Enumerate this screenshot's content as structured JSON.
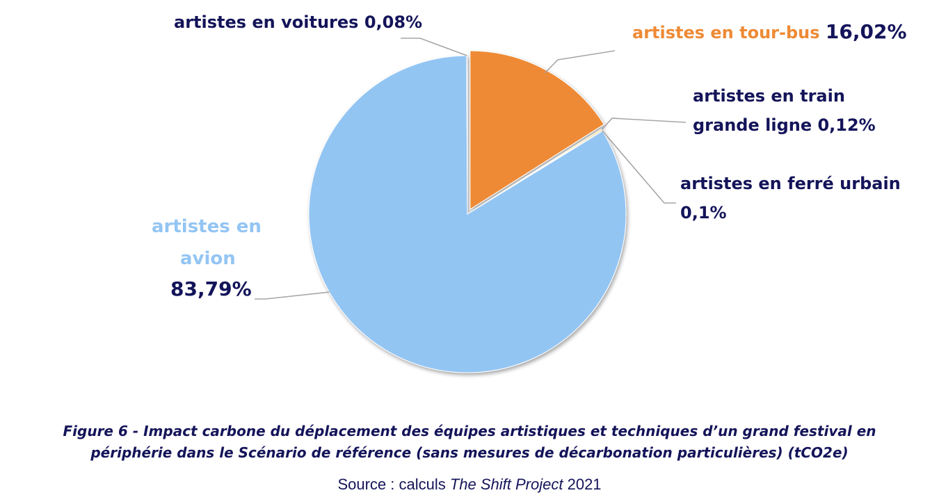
{
  "chart_data": {
    "type": "pie",
    "slices": [
      {
        "label_lines": [
          "artistes en tour-bus"
        ],
        "value": 16.02,
        "value_label": "16,02%",
        "color": "#ee8a35"
      },
      {
        "label_lines": [
          "artistes en train",
          "grande ligne"
        ],
        "value": 0.12,
        "value_label": "0,12%",
        "color": "#f4c430"
      },
      {
        "label_lines": [
          "artistes en ferré urbain"
        ],
        "value": 0.1,
        "value_label": "0,1%",
        "color": "#a5a5a5"
      },
      {
        "label_lines": [
          "artistes en",
          "avion"
        ],
        "value": 83.79,
        "value_label": "83,79%",
        "color": "#93c5f3"
      },
      {
        "label_lines": [
          "artistes en voitures"
        ],
        "value": 0.08,
        "value_label": "0,08%",
        "color": "#333333"
      }
    ],
    "exploded_slice": "artistes en tour-bus",
    "legend": "none (data labels with leader lines)"
  },
  "caption": {
    "line1": "Figure 6 - Impact carbone du déplacement des équipes artistiques et techniques d’un grand festival en",
    "line2": "périphérie dans le Scénario de référence (sans mesures de décarbonation particulières) (tCO2e)"
  },
  "source": {
    "prefix": "Source : calculs ",
    "italic": "The Shift Project",
    "suffix": " 2021"
  }
}
